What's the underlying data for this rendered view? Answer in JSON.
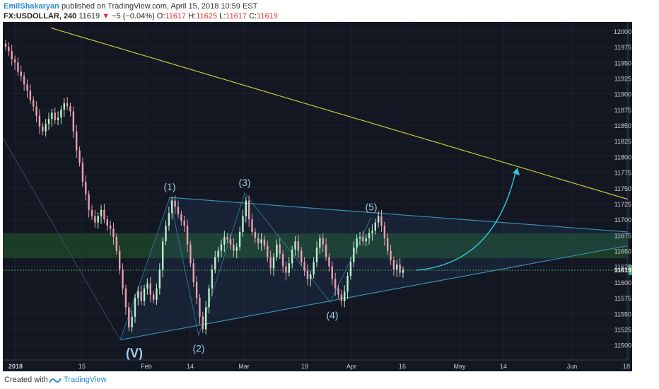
{
  "header": {
    "author": "EmilShakaryan",
    "published_text": "published on TradingView.com, April 15, 2018 10:59 EST",
    "symbol": "FX:USDOLLAR, 240",
    "last": "11619",
    "change_arrow": "▼",
    "change": "−5 (−0.04%)",
    "open_label": "O:",
    "open": "11617",
    "high_label": "H:",
    "high": "11625",
    "low_label": "L:",
    "low": "11617",
    "close_label": "C:",
    "close": "11619"
  },
  "footer": {
    "created_with": "Created with",
    "brand": "TradingView"
  },
  "colors": {
    "background": "#131722",
    "up_candle": "#b8f0c8",
    "down_candle": "#e8a0b0",
    "trendline_yellow": "#c8c83a",
    "triangle_line": "#3a8fb0",
    "arrow": "#36c8d8",
    "green_zone": "#1f4a2a",
    "price_tag": "#4caf6a",
    "wave_labels": "#9ecbe8"
  },
  "chart_data": {
    "type": "candlestick",
    "symbol": "FX:USDOLLAR",
    "timeframe": "240",
    "ylim": [
      11485,
      12010
    ],
    "y_ticks": [
      11500,
      11525,
      11550,
      11575,
      11600,
      11625,
      11650,
      11675,
      11700,
      11725,
      11750,
      11775,
      11800,
      11825,
      11850,
      11875,
      11900,
      11925,
      11950,
      11975,
      12000
    ],
    "x_ticks": [
      "2018",
      "15",
      "Feb",
      "14",
      "Mar",
      "19",
      "Apr",
      "16",
      "May",
      "14",
      "Jun",
      "18"
    ],
    "current_price": 11619,
    "close_series": [
      11975,
      11968,
      11955,
      11950,
      11935,
      11928,
      11915,
      11905,
      11890,
      11880,
      11865,
      11848,
      11840,
      11852,
      11860,
      11870,
      11858,
      11862,
      11875,
      11885,
      11880,
      11872,
      11840,
      11810,
      11790,
      11760,
      11740,
      11715,
      11705,
      11695,
      11705,
      11715,
      11700,
      11690,
      11685,
      11672,
      11650,
      11620,
      11590,
      11560,
      11528,
      11545,
      11575,
      11585,
      11570,
      11590,
      11598,
      11580,
      11572,
      11590,
      11620,
      11665,
      11690,
      11710,
      11730,
      11720,
      11708,
      11698,
      11690,
      11660,
      11630,
      11600,
      11575,
      11545,
      11525,
      11560,
      11590,
      11620,
      11640,
      11650,
      11660,
      11672,
      11668,
      11660,
      11650,
      11656,
      11680,
      11705,
      11730,
      11700,
      11680,
      11670,
      11662,
      11668,
      11658,
      11640,
      11622,
      11640,
      11660,
      11645,
      11625,
      11615,
      11630,
      11652,
      11665,
      11650,
      11632,
      11618,
      11605,
      11612,
      11632,
      11655,
      11670,
      11660,
      11640,
      11625,
      11605,
      11590,
      11580,
      11570,
      11585,
      11610,
      11632,
      11655,
      11670,
      11672,
      11665,
      11670,
      11678,
      11682,
      11695,
      11705,
      11690,
      11670,
      11650,
      11635,
      11620,
      11628,
      11615,
      11619
    ],
    "zones": [
      {
        "from": 11638,
        "to": 11678
      }
    ],
    "trendlines": [
      {
        "name": "upper trendline",
        "from": [
          "start",
          12005
        ],
        "to": [
          "end",
          11732
        ]
      },
      {
        "name": "triangle top",
        "from": [
          "Feb",
          11735
        ],
        "to": [
          "end",
          11680
        ]
      },
      {
        "name": "triangle bottom",
        "from": [
          "(V)",
          11508
        ],
        "to": [
          "end",
          11658
        ]
      }
    ],
    "annotations": [
      "(1)",
      "(2)",
      "(3)",
      "(4)",
      "(5)",
      "(V)"
    ],
    "projection": "curved arrow up toward the upper trendline"
  }
}
